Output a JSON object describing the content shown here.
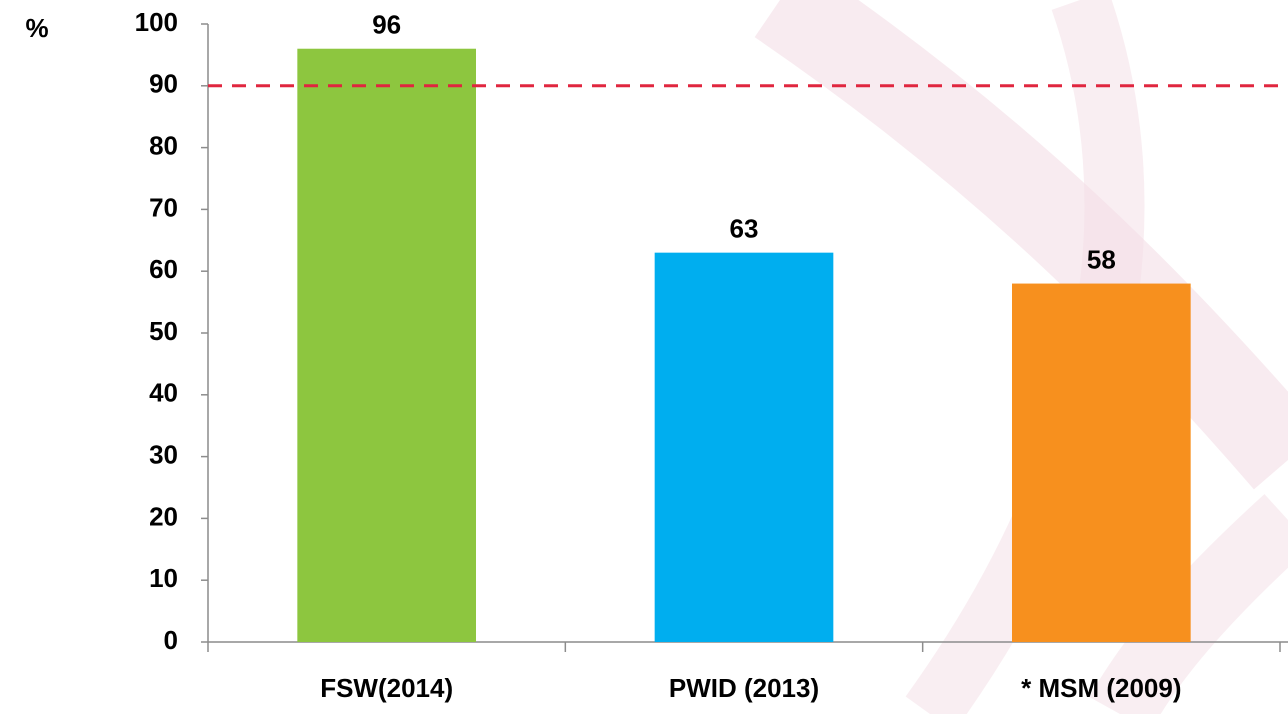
{
  "chart_data": {
    "type": "bar",
    "y_label": "%",
    "categories": [
      "FSW(2014)",
      "PWID (2013)",
      "* MSM (2009)"
    ],
    "values": [
      96,
      63,
      58
    ],
    "colors": [
      "#8dc63f",
      "#00aeef",
      "#f7901e"
    ],
    "ylim": [
      0,
      100
    ],
    "yticks": [
      0,
      10,
      20,
      30,
      40,
      50,
      60,
      70,
      80,
      90,
      100
    ],
    "reference_line": {
      "value": 90,
      "color": "#e0263f"
    }
  }
}
